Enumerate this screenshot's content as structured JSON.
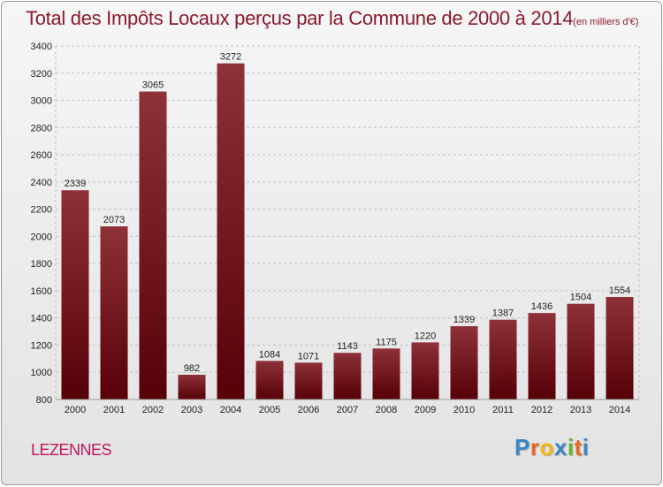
{
  "title": "Total des Impôts Locaux perçus par la Commune de 2000 à 2014",
  "title_unit": "(en milliers d'€)",
  "commune": "LEZENNES",
  "logo": {
    "text": "Proxiti",
    "letter_colors": [
      "#3a86c6",
      "#e8681e",
      "#f3b715",
      "#3a86c6",
      "#6ab42d",
      "#e8681e",
      "#3a86c6"
    ]
  },
  "colors": {
    "title": "#8b1a2c",
    "commune": "#c0175d",
    "bar_top": "#8e3138",
    "bar_bottom": "#570007",
    "grid": "#bfbfbf",
    "axis_text": "#222222"
  },
  "chart_data": {
    "type": "bar",
    "categories": [
      "2000",
      "2001",
      "2002",
      "2003",
      "2004",
      "2005",
      "2006",
      "2007",
      "2008",
      "2009",
      "2010",
      "2011",
      "2012",
      "2013",
      "2014"
    ],
    "values": [
      2339,
      2073,
      3065,
      982,
      3272,
      1084,
      1071,
      1143,
      1175,
      1220,
      1339,
      1387,
      1436,
      1504,
      1554
    ],
    "yticks": [
      800,
      1000,
      1200,
      1400,
      1600,
      1800,
      2000,
      2200,
      2400,
      2600,
      2800,
      3000,
      3200,
      3400
    ],
    "ylim": [
      800,
      3400
    ],
    "grid": true,
    "data_labels": true,
    "xlabel": "",
    "ylabel": ""
  }
}
